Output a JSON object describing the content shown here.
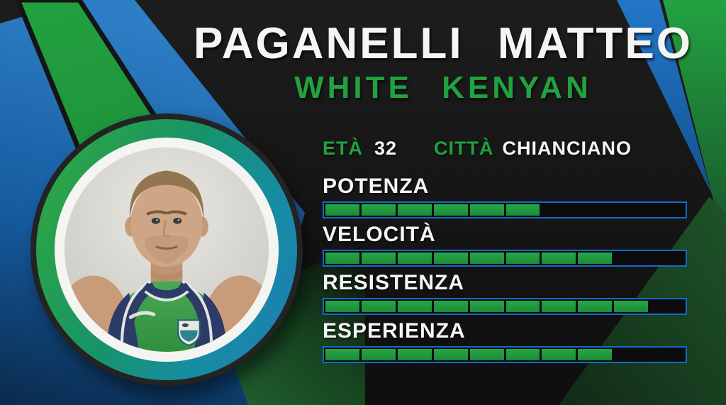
{
  "card": {
    "title": "PAGANELLI MATTEO",
    "subtitle": "WHITE KENYAN",
    "info": {
      "age_label": "ETÀ",
      "age_value": "32",
      "city_label": "CITTÀ",
      "city_value": "CHIANCIANO"
    },
    "stats": [
      {
        "label": "POTENZA",
        "value": 6,
        "max": 10
      },
      {
        "label": "VELOCITÀ",
        "value": 8,
        "max": 10
      },
      {
        "label": "RESISTENZA",
        "value": 9,
        "max": 10
      },
      {
        "label": "ESPERIENZA",
        "value": 8,
        "max": 10
      }
    ],
    "photo": {
      "description": "Portrait of the athlete with short fair hair wearing a green tank top with navy trim and club crest, against a light wall"
    },
    "colors": {
      "accent_green": "#21a23f",
      "bar_fill_green": "#1f9c3e",
      "bar_border_blue": "#1668cf",
      "stripe_blue": "#1e72c4",
      "background_black": "#131313"
    }
  }
}
